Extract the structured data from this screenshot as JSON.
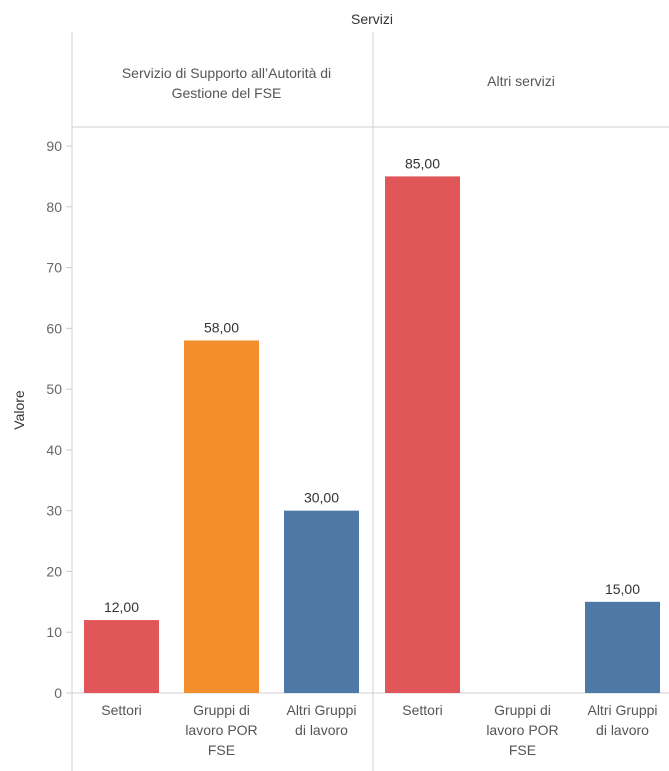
{
  "chart_data": {
    "type": "bar",
    "title": "Servizi",
    "ylabel": "Valore",
    "ylim": [
      0,
      90
    ],
    "yticks": [
      0,
      10,
      20,
      30,
      40,
      50,
      60,
      70,
      80,
      90
    ],
    "categories": [
      [
        "Settori"
      ],
      [
        "Gruppi di",
        "lavoro POR",
        "FSE"
      ],
      [
        "Altri Gruppi",
        "di lavoro"
      ]
    ],
    "colors": [
      "#e15759",
      "#f28e2b",
      "#4e79a7"
    ],
    "panels": [
      {
        "name_lines": [
          "Servizio di Supporto all’Autorità di",
          "Gestione del FSE"
        ],
        "values": [
          12,
          58,
          30
        ],
        "labels": [
          "12,00",
          "58,00",
          "30,00"
        ]
      },
      {
        "name_lines": [
          "Altri servizi"
        ],
        "values": [
          85,
          null,
          15
        ],
        "labels": [
          "85,00",
          "",
          "15,00"
        ]
      }
    ],
    "grid": false,
    "legend": "none"
  }
}
